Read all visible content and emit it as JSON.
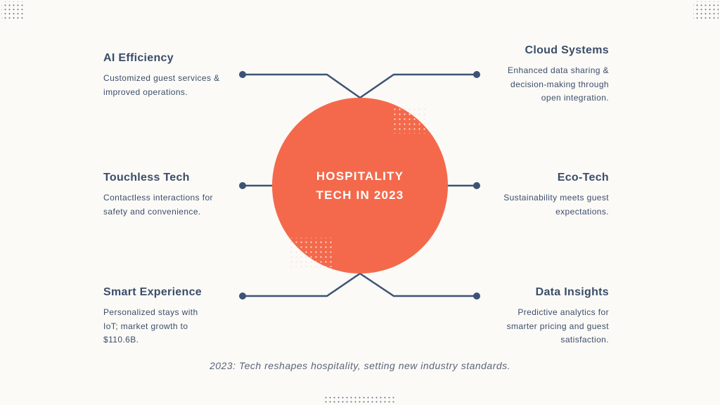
{
  "center": {
    "title": "HOSPITALITY TECH IN 2023"
  },
  "items": [
    {
      "title": "AI Efficiency",
      "description": "Customized guest services & improved operations."
    },
    {
      "title": "Cloud Systems",
      "description": "Enhanced data sharing & decision-making through open integration."
    },
    {
      "title": "Touchless Tech",
      "description": "Contactless interactions for safety and convenience."
    },
    {
      "title": "Eco-Tech",
      "description": "Sustainability meets guest expectations."
    },
    {
      "title": "Smart Experience",
      "description": "Personalized stays with IoT; market growth to $110.6B."
    },
    {
      "title": "Data Insights",
      "description": "Predictive analytics for smarter pricing and guest satisfaction."
    }
  ],
  "footer": "2023: Tech reshapes hospitality, setting new industry standards."
}
